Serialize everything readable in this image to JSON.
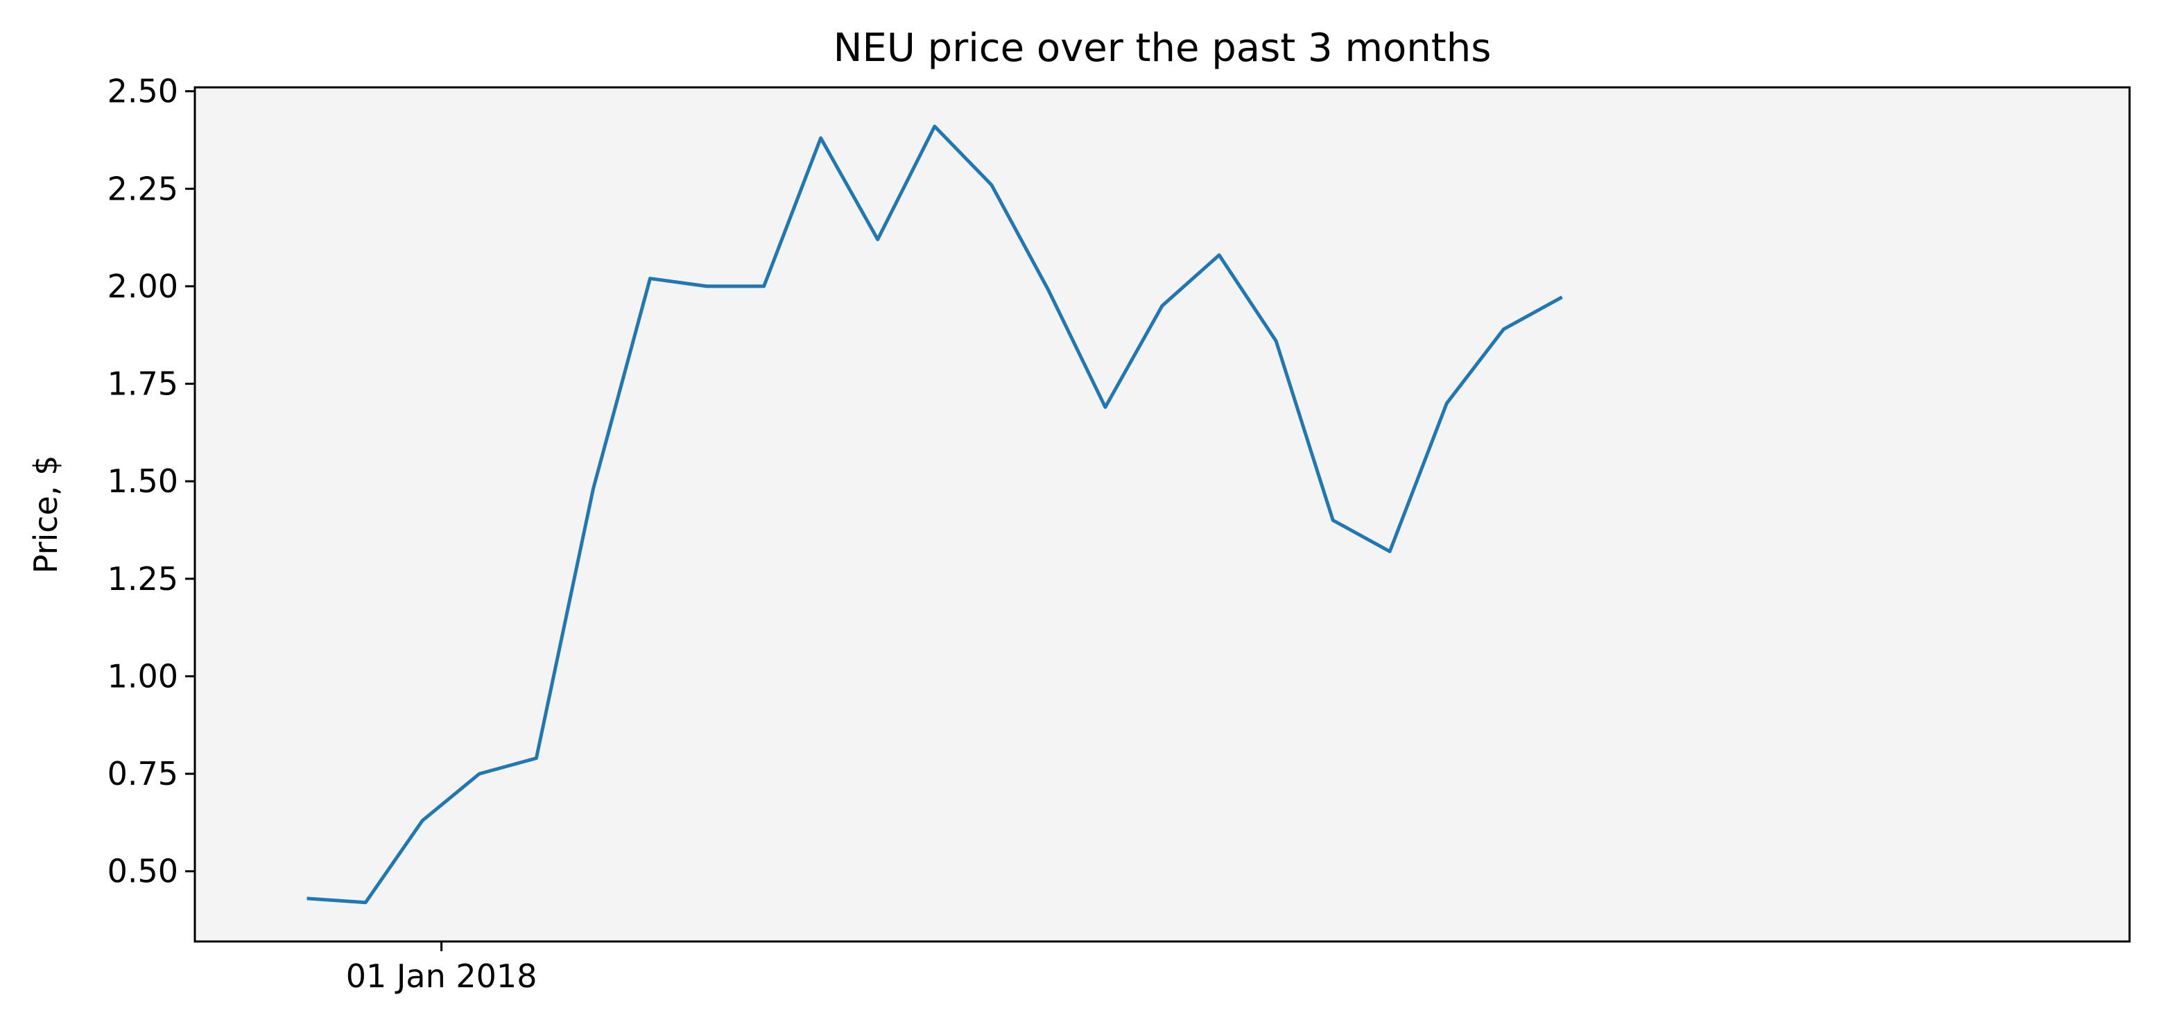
{
  "chart_data": {
    "type": "line",
    "title": "NEU price over the past 3 months",
    "xlabel": "",
    "ylabel": "Price, $",
    "x_ticks": [
      {
        "x": "2018-01-01",
        "label": "01 Jan 2018"
      }
    ],
    "x_range": [
      "2017-12-19",
      "2018-03-31"
    ],
    "ylim": [
      0.32,
      2.51
    ],
    "y_ticks": [
      0.5,
      0.75,
      1.0,
      1.25,
      1.5,
      1.75,
      2.0,
      2.25,
      2.5
    ],
    "y_tick_labels": [
      "0.50",
      "0.75",
      "1.00",
      "1.25",
      "1.50",
      "1.75",
      "2.00",
      "2.25",
      "2.50"
    ],
    "grid": false,
    "background": "#f4f4f4",
    "series": [
      {
        "color": "#1f77b4",
        "points": [
          {
            "x": "2017-12-25",
            "y": 0.43
          },
          {
            "x": "2017-12-28",
            "y": 0.42
          },
          {
            "x": "2017-12-31",
            "y": 0.63
          },
          {
            "x": "2018-01-03",
            "y": 0.75
          },
          {
            "x": "2018-01-06",
            "y": 0.79
          },
          {
            "x": "2018-01-09",
            "y": 1.48
          },
          {
            "x": "2018-01-12",
            "y": 2.02
          },
          {
            "x": "2018-01-15",
            "y": 2.0
          },
          {
            "x": "2018-01-18",
            "y": 2.0
          },
          {
            "x": "2018-01-21",
            "y": 2.38
          },
          {
            "x": "2018-01-24",
            "y": 2.12
          },
          {
            "x": "2018-01-27",
            "y": 2.41
          },
          {
            "x": "2018-01-30",
            "y": 2.26
          },
          {
            "x": "2018-02-02",
            "y": 1.99
          },
          {
            "x": "2018-02-05",
            "y": 1.69
          },
          {
            "x": "2018-02-08",
            "y": 1.95
          },
          {
            "x": "2018-02-11",
            "y": 2.08
          },
          {
            "x": "2018-02-14",
            "y": 1.86
          },
          {
            "x": "2018-02-17",
            "y": 1.4
          },
          {
            "x": "2018-02-20",
            "y": 1.32
          },
          {
            "x": "2018-02-23",
            "y": 1.7
          },
          {
            "x": "2018-02-26",
            "y": 1.89
          },
          {
            "x": "2018-03-01",
            "y": 1.97
          }
        ]
      }
    ]
  }
}
